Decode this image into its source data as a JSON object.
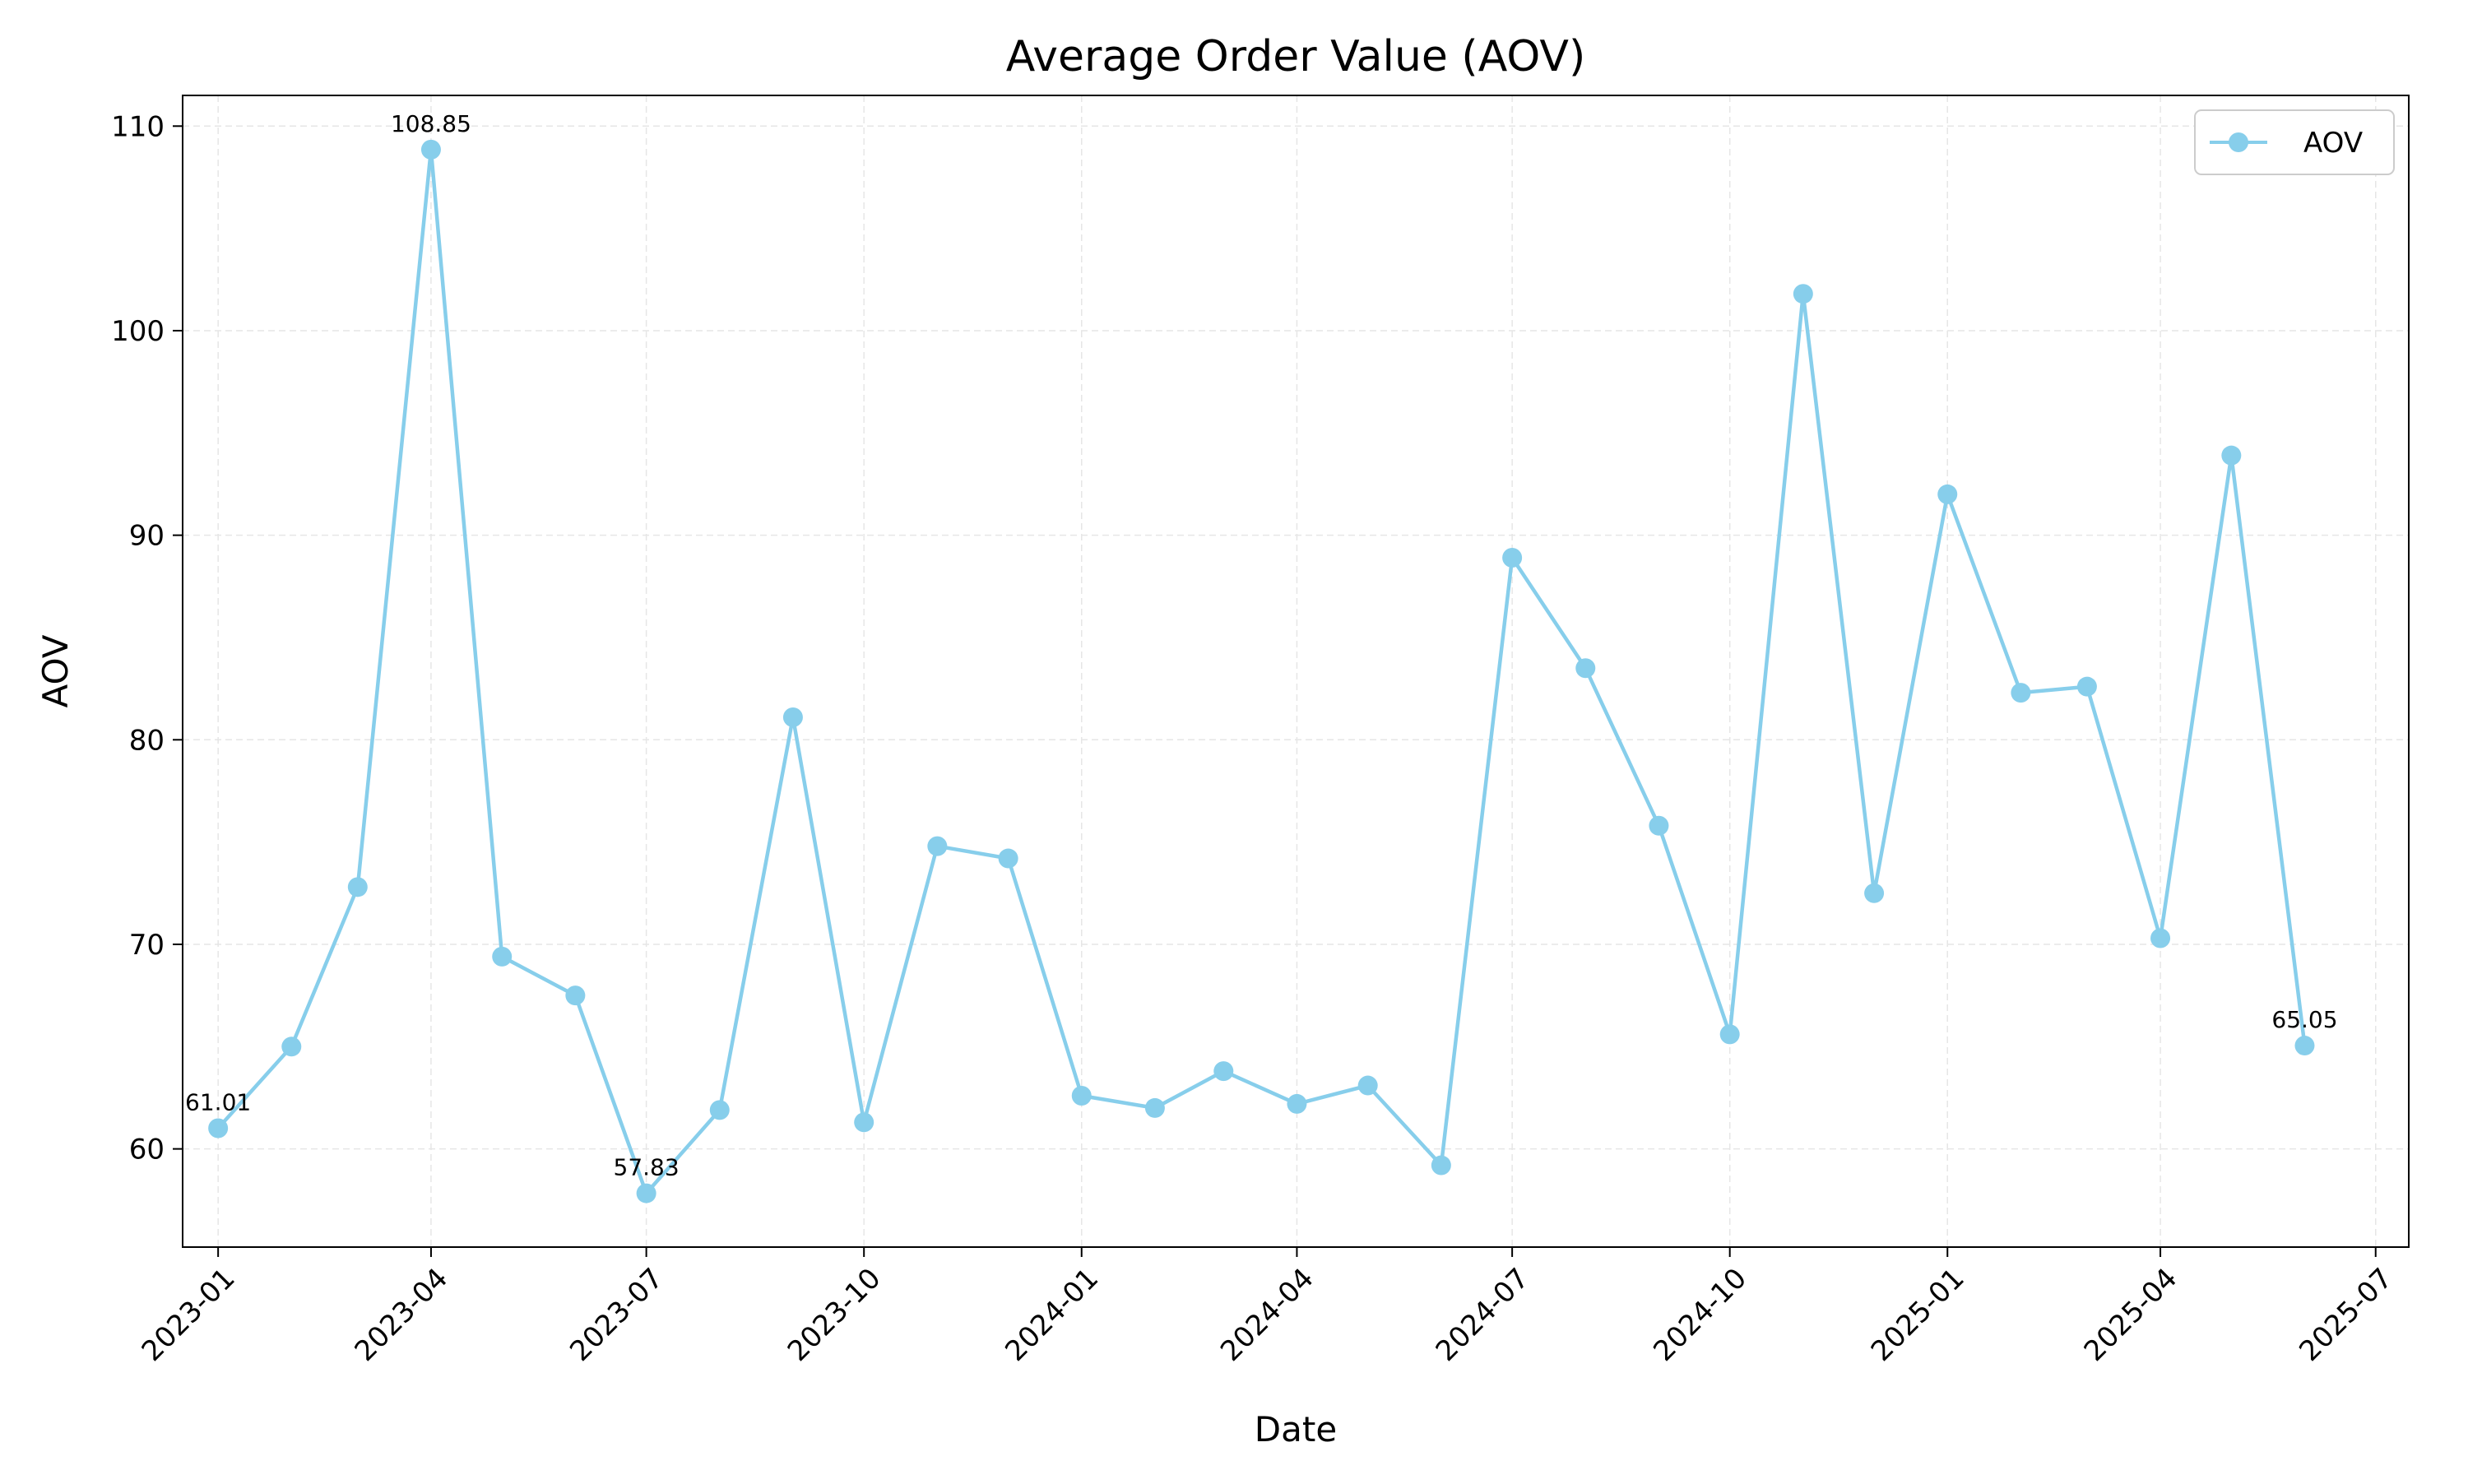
{
  "chart_data": {
    "type": "line",
    "title": "Average Order Value (AOV)",
    "xlabel": "Date",
    "ylabel": "AOV",
    "x_domain": [
      "2022-12-17",
      "2025-07-15"
    ],
    "ylim": [
      55.2,
      111.5
    ],
    "grid": true,
    "legend_position": "top-right",
    "colors": {
      "series": "#87ceeb",
      "axis": "#000000",
      "grid": "#e6e6e6"
    },
    "x_ticks": [
      {
        "date": "2023-01-01",
        "label": "2023-01"
      },
      {
        "date": "2023-04-01",
        "label": "2023-04"
      },
      {
        "date": "2023-07-01",
        "label": "2023-07"
      },
      {
        "date": "2023-10-01",
        "label": "2023-10"
      },
      {
        "date": "2024-01-01",
        "label": "2024-01"
      },
      {
        "date": "2024-04-01",
        "label": "2024-04"
      },
      {
        "date": "2024-07-01",
        "label": "2024-07"
      },
      {
        "date": "2024-10-01",
        "label": "2024-10"
      },
      {
        "date": "2025-01-01",
        "label": "2025-01"
      },
      {
        "date": "2025-04-01",
        "label": "2025-04"
      },
      {
        "date": "2025-07-01",
        "label": "2025-07"
      }
    ],
    "y_ticks": [
      60,
      70,
      80,
      90,
      100,
      110
    ],
    "series": [
      {
        "name": "AOV",
        "x": [
          "2023-01-01",
          "2023-02-01",
          "2023-03-01",
          "2023-04-01",
          "2023-05-01",
          "2023-06-01",
          "2023-07-01",
          "2023-08-01",
          "2023-09-01",
          "2023-10-01",
          "2023-11-01",
          "2023-12-01",
          "2024-01-01",
          "2024-02-01",
          "2024-03-01",
          "2024-04-01",
          "2024-05-01",
          "2024-06-01",
          "2024-07-01",
          "2024-08-01",
          "2024-09-01",
          "2024-10-01",
          "2024-11-01",
          "2024-12-01",
          "2025-01-01",
          "2025-02-01",
          "2025-03-01",
          "2025-04-01",
          "2025-05-01",
          "2025-06-01"
        ],
        "values": [
          61.01,
          65.0,
          72.8,
          108.85,
          69.4,
          67.5,
          57.83,
          61.9,
          81.1,
          61.3,
          74.8,
          74.2,
          62.6,
          62.0,
          63.8,
          62.2,
          63.1,
          59.2,
          88.9,
          83.5,
          75.8,
          65.6,
          101.8,
          72.5,
          92.0,
          82.3,
          82.6,
          70.3,
          93.9,
          65.05
        ]
      }
    ],
    "annotations": [
      {
        "date": "2023-01-01",
        "value": 61.01,
        "text": "61.01"
      },
      {
        "date": "2023-04-01",
        "value": 108.85,
        "text": "108.85"
      },
      {
        "date": "2023-07-01",
        "value": 57.83,
        "text": "57.83"
      },
      {
        "date": "2025-06-01",
        "value": 65.05,
        "text": "65.05"
      }
    ]
  }
}
